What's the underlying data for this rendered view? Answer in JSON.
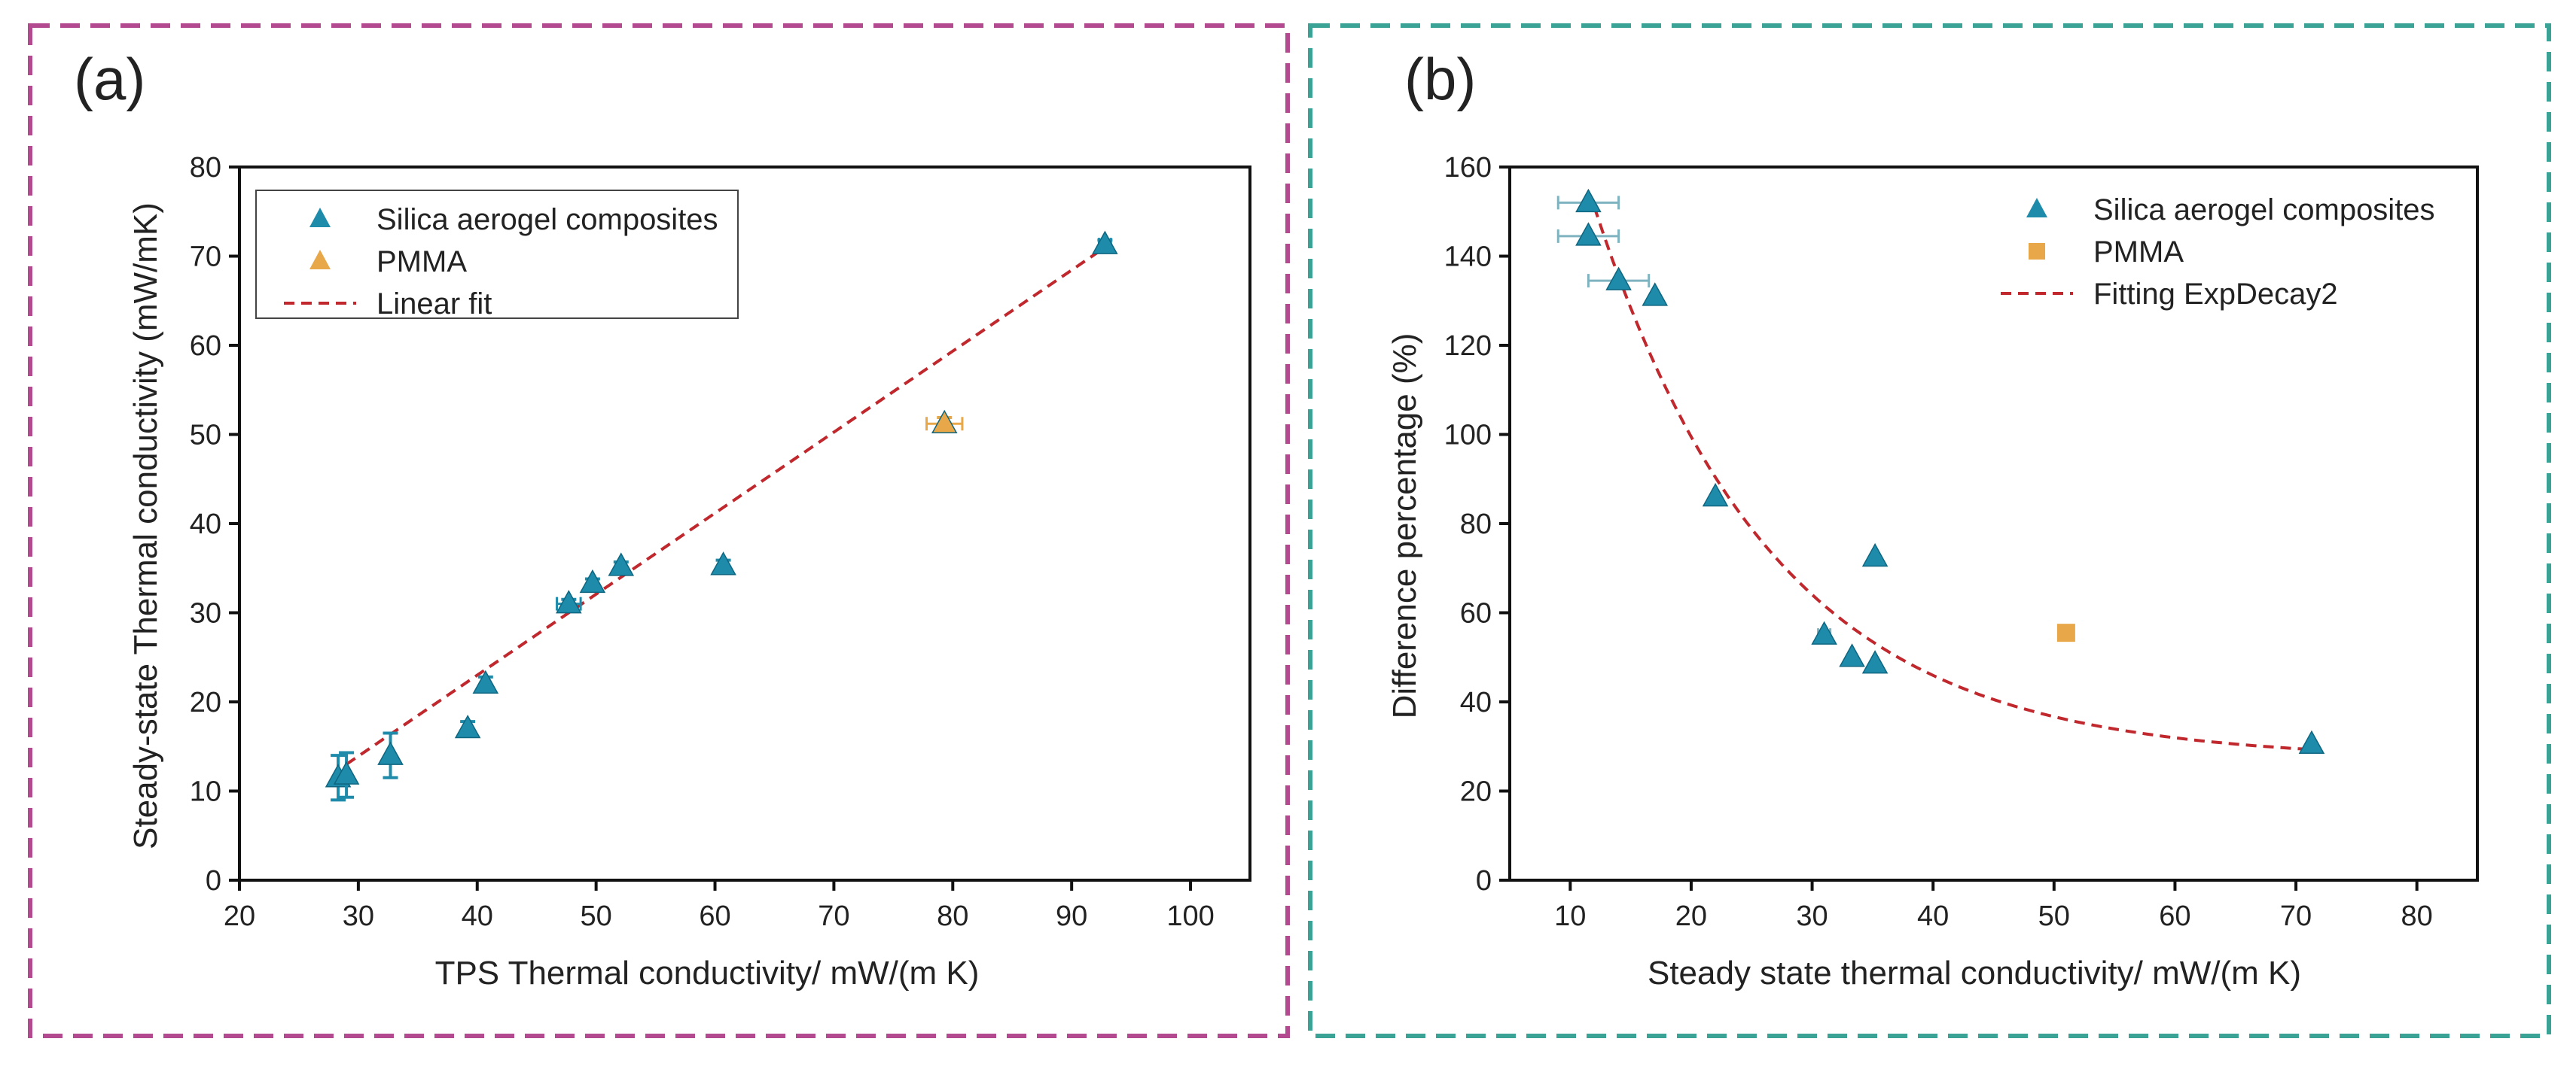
{
  "colors": {
    "panel_a_border": "#b3498f",
    "panel_b_border": "#3aa396",
    "silica": "#1f8bab",
    "pmma": "#e8a84a",
    "fit": "#c0282d"
  },
  "chart_data": [
    {
      "type": "scatter",
      "panel_label": "(a)",
      "xlabel": "TPS Thermal conductivity/ mW/(m K)",
      "ylabel": "Steady-state Thermal conductivity (mW/mK)",
      "xlim": [
        20,
        105
      ],
      "ylim": [
        0,
        80
      ],
      "xticks": [
        20,
        30,
        40,
        50,
        60,
        70,
        80,
        90,
        100
      ],
      "yticks": [
        0,
        10,
        20,
        30,
        40,
        50,
        60,
        70,
        80
      ],
      "legend_position": "top-left",
      "legend": [
        "Silica aerogel composites",
        "PMMA",
        "Linear fit"
      ],
      "series": [
        {
          "name": "Silica aerogel composites",
          "marker": "triangle",
          "points": [
            [
              28.3,
              11.5,
              2.5,
              0
            ],
            [
              29,
              11.8,
              2.5,
              0
            ],
            [
              32.7,
              14,
              2.5,
              0
            ],
            [
              39.2,
              17,
              0.8,
              0
            ],
            [
              40.7,
              22,
              0.8,
              0
            ],
            [
              47.7,
              31,
              0.5,
              1
            ],
            [
              49.7,
              33.3,
              0.5,
              0
            ],
            [
              52.1,
              35.2,
              0.5,
              0
            ],
            [
              60.7,
              35.3,
              0.6,
              0
            ],
            [
              92.8,
              71.3,
              0.5,
              0.5
            ]
          ]
        },
        {
          "name": "PMMA",
          "marker": "triangle",
          "points": [
            [
              79.3,
              51.2,
              0.7,
              1.5
            ]
          ]
        }
      ],
      "fit": {
        "name": "Linear fit",
        "kind": "linear",
        "x_range": [
          29,
          92.5
        ],
        "slope": 0.9087,
        "intercept": -13.35
      }
    },
    {
      "type": "scatter",
      "panel_label": "(b)",
      "xlabel": "Steady state thermal conductivity/ mW/(m K)",
      "ylabel": "Difference percentage (%)",
      "xlim": [
        5,
        85
      ],
      "ylim": [
        0,
        160
      ],
      "xticks": [
        10,
        20,
        30,
        40,
        50,
        60,
        70,
        80
      ],
      "yticks": [
        0,
        20,
        40,
        60,
        80,
        100,
        120,
        140,
        160
      ],
      "legend_position": "top-right",
      "legend": [
        "Silica aerogel composites",
        "PMMA",
        "Fitting ExpDecay2"
      ],
      "series": [
        {
          "name": "Silica aerogel composites",
          "marker": "triangle",
          "points": [
            [
              11.5,
              152,
              0,
              2.5
            ],
            [
              11.5,
              144.5,
              0,
              2.5
            ],
            [
              14,
              134.5,
              0,
              2.5
            ],
            [
              17,
              131,
              0,
              0
            ],
            [
              22,
              86,
              0,
              0
            ],
            [
              35.2,
              72.5,
              0,
              0
            ],
            [
              31,
              55,
              0,
              0.5
            ],
            [
              33.3,
              50,
              0,
              0
            ],
            [
              35.2,
              48.5,
              0,
              0
            ],
            [
              71.3,
              30.5,
              0,
              0
            ]
          ]
        },
        {
          "name": "PMMA",
          "marker": "square",
          "points": [
            [
              51,
              55.5,
              0,
              0
            ]
          ]
        }
      ],
      "fit": {
        "name": "Fitting ExpDecay2",
        "kind": "exp",
        "x_range": [
          12,
          71
        ],
        "y0": 27,
        "A": 124,
        "x0": 12,
        "t": 14.9
      }
    }
  ]
}
